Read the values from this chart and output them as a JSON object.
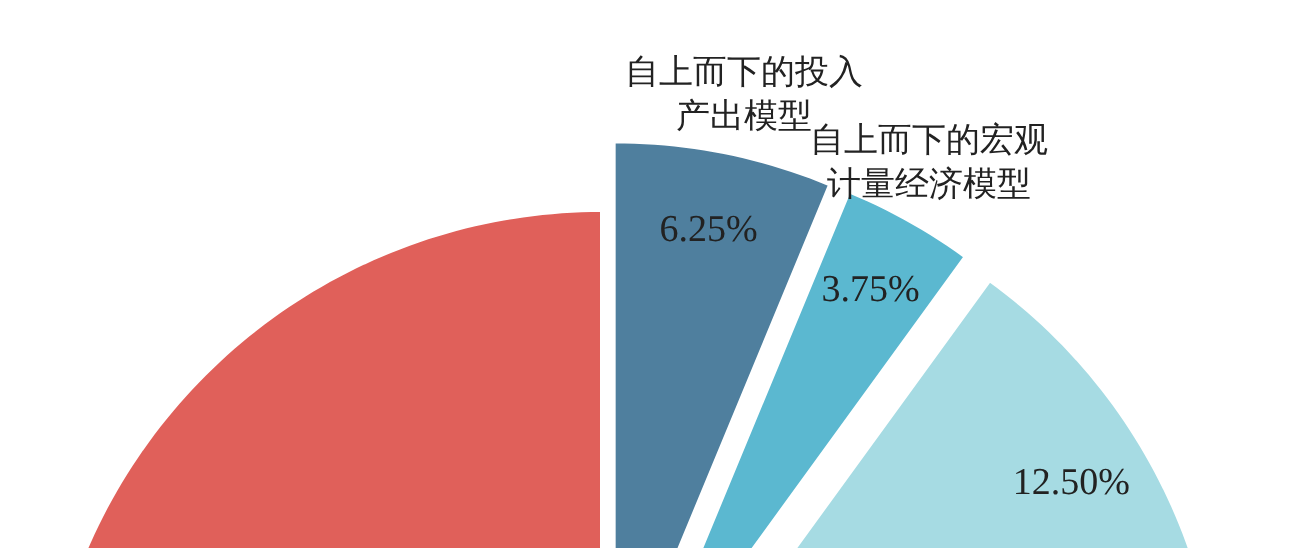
{
  "chart_data": {
    "type": "pie",
    "categories": [
      "自上而下的投入产出模型",
      "自上而下的宏观计量经济模型",
      null,
      null
    ],
    "values": [
      6.25,
      3.75,
      12.5,
      77.5
    ],
    "colors": [
      "#4f7f9e",
      "#5bb8d0",
      "#a6dbe3",
      "#e0605a"
    ],
    "value_labels": [
      "6.25%",
      "3.75%",
      "12.50%",
      null
    ]
  }
}
